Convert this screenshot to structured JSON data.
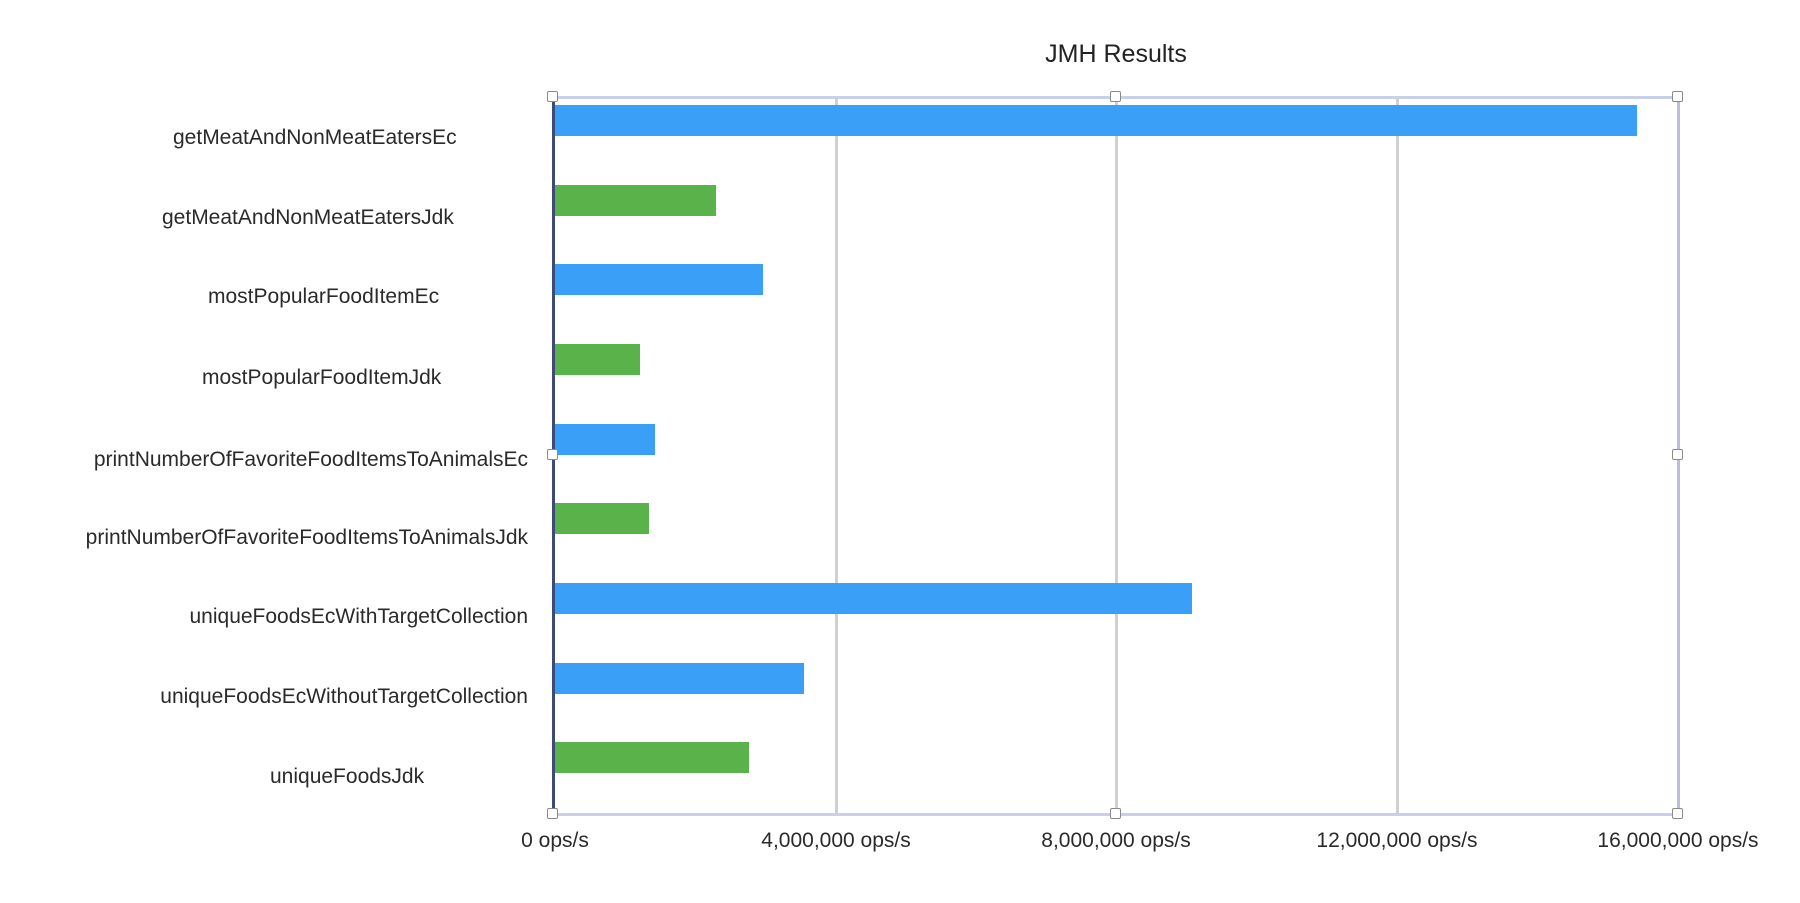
{
  "chart_data": {
    "type": "bar",
    "orientation": "horizontal",
    "title": "JMH Results",
    "xlabel": "",
    "ylabel": "",
    "unit": "ops/s",
    "xlim": [
      0,
      16000000
    ],
    "grid": true,
    "legend": null,
    "x_ticks": [
      0,
      4000000,
      8000000,
      12000000,
      16000000
    ],
    "x_tick_labels": [
      "0 ops/s",
      "4,000,000 ops/s",
      "8,000,000 ops/s",
      "12,000,000 ops/s",
      "16,000,000 ops/s"
    ],
    "categories": [
      "getMeatAndNonMeatEatersEc",
      "getMeatAndNonMeatEatersJdk",
      "mostPopularFoodItemEc",
      "mostPopularFoodItemJdk",
      "printNumberOfFavoriteFoodItemsToAnimalsEc",
      "printNumberOfFavoriteFoodItemsToAnimalsJdk",
      "uniqueFoodsEcWithTargetCollection",
      "uniqueFoodsEcWithoutTargetCollection",
      "uniqueFoodsJdk"
    ],
    "values": [
      15420000,
      2320000,
      2980000,
      1240000,
      1450000,
      1360000,
      9090000,
      3570000,
      2790000
    ],
    "bar_colors": [
      "#3a9ff7",
      "#5ab34a",
      "#3a9ff7",
      "#5ab34a",
      "#3a9ff7",
      "#5ab34a",
      "#3a9ff7",
      "#3a9ff7",
      "#5ab34a"
    ],
    "series_groups": {
      "Ec": {
        "color": "#3a9ff7"
      },
      "Jdk": {
        "color": "#5ab34a"
      }
    }
  },
  "colors": {
    "ec": "#3a9ff7",
    "jdk": "#5ab34a",
    "grid": "#d0d0d2",
    "axis": "#3e4a78",
    "selection_frame": "#c9d0ea"
  }
}
